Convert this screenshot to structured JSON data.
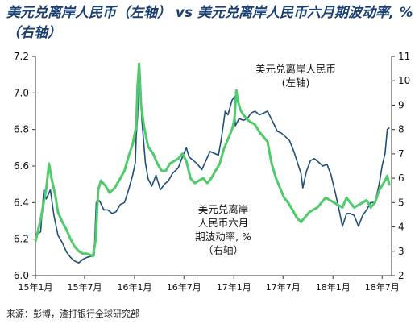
{
  "title": "美元兑离岸人民币（左轴） vs 美元兑离岸人民币六月期波动率, %（右轴）",
  "source": "来源：彭博，渣打银行全球研究部",
  "chart_data": {
    "type": "line",
    "title": "美元兑离岸人民币（左轴） vs 美元兑离岸人民币六月期波动率, %（右轴）",
    "x_ticks": [
      "15年1月",
      "15年7月",
      "16年1月",
      "16年7月",
      "17年1月",
      "17年7月",
      "18年1月",
      "18年7月"
    ],
    "y_left_ticks": [
      "6.0",
      "6.2",
      "6.4",
      "6.6",
      "6.8",
      "7.0",
      "7.2"
    ],
    "y_right_ticks": [
      "2",
      "3",
      "4",
      "5",
      "6",
      "7",
      "8",
      "9",
      "10",
      "11"
    ],
    "ylim_left": [
      6.0,
      7.2
    ],
    "ylim_right": [
      2,
      11
    ],
    "grid": false,
    "series": [
      {
        "name": "美元兑离岸人民币（左轴）",
        "axis": "left",
        "color": "#1f4e79",
        "annotation": [
          "美元兑离岸人民币",
          "(左轴)"
        ],
        "points": [
          [
            "2015-01-01",
            6.22
          ],
          [
            "2015-01-20",
            6.24
          ],
          [
            "2015-02-01",
            6.47
          ],
          [
            "2015-02-10",
            6.42
          ],
          [
            "2015-02-25",
            6.47
          ],
          [
            "2015-03-10",
            6.33
          ],
          [
            "2015-03-25",
            6.22
          ],
          [
            "2015-04-10",
            6.18
          ],
          [
            "2015-04-25",
            6.13
          ],
          [
            "2015-05-10",
            6.1
          ],
          [
            "2015-05-25",
            6.08
          ],
          [
            "2015-06-10",
            6.07
          ],
          [
            "2015-06-25",
            6.09
          ],
          [
            "2015-07-10",
            6.1
          ],
          [
            "2015-08-05",
            6.11
          ],
          [
            "2015-08-13",
            6.4
          ],
          [
            "2015-08-25",
            6.41
          ],
          [
            "2015-09-10",
            6.36
          ],
          [
            "2015-09-25",
            6.36
          ],
          [
            "2015-10-10",
            6.34
          ],
          [
            "2015-10-25",
            6.35
          ],
          [
            "2015-11-10",
            6.39
          ],
          [
            "2015-11-25",
            6.4
          ],
          [
            "2015-12-10",
            6.47
          ],
          [
            "2015-12-25",
            6.55
          ],
          [
            "2016-01-04",
            6.62
          ],
          [
            "2016-01-07",
            6.76
          ],
          [
            "2016-01-12",
            6.87
          ],
          [
            "2016-01-20",
            7.13
          ],
          [
            "2016-01-28",
            6.85
          ],
          [
            "2016-02-10",
            6.62
          ],
          [
            "2016-02-20",
            6.53
          ],
          [
            "2016-03-05",
            6.49
          ],
          [
            "2016-03-20",
            6.55
          ],
          [
            "2016-04-05",
            6.47
          ],
          [
            "2016-04-20",
            6.5
          ],
          [
            "2016-05-05",
            6.52
          ],
          [
            "2016-05-20",
            6.56
          ],
          [
            "2016-06-10",
            6.59
          ],
          [
            "2016-06-28",
            6.66
          ],
          [
            "2016-07-10",
            6.7
          ],
          [
            "2016-07-20",
            6.65
          ],
          [
            "2016-08-05",
            6.63
          ],
          [
            "2016-08-20",
            6.61
          ],
          [
            "2016-09-05",
            6.58
          ],
          [
            "2016-09-20",
            6.63
          ],
          [
            "2016-10-05",
            6.68
          ],
          [
            "2016-10-20",
            6.67
          ],
          [
            "2016-11-05",
            6.66
          ],
          [
            "2016-11-15",
            6.74
          ],
          [
            "2016-11-30",
            6.9
          ],
          [
            "2016-12-10",
            6.88
          ],
          [
            "2016-12-25",
            6.96
          ],
          [
            "2017-01-03",
            6.98
          ],
          [
            "2017-01-06",
            6.82
          ],
          [
            "2017-01-20",
            6.86
          ],
          [
            "2017-02-05",
            6.85
          ],
          [
            "2017-02-20",
            6.86
          ],
          [
            "2017-03-05",
            6.89
          ],
          [
            "2017-03-20",
            6.9
          ],
          [
            "2017-04-05",
            6.88
          ],
          [
            "2017-04-20",
            6.89
          ],
          [
            "2017-05-05",
            6.9
          ],
          [
            "2017-05-25",
            6.84
          ],
          [
            "2017-06-10",
            6.79
          ],
          [
            "2017-06-25",
            6.78
          ],
          [
            "2017-07-10",
            6.76
          ],
          [
            "2017-07-25",
            6.74
          ],
          [
            "2017-08-10",
            6.68
          ],
          [
            "2017-08-25",
            6.61
          ],
          [
            "2017-09-05",
            6.56
          ],
          [
            "2017-09-12",
            6.48
          ],
          [
            "2017-09-25",
            6.57
          ],
          [
            "2017-10-10",
            6.63
          ],
          [
            "2017-10-25",
            6.64
          ],
          [
            "2017-11-10",
            6.62
          ],
          [
            "2017-11-25",
            6.6
          ],
          [
            "2017-12-10",
            6.61
          ],
          [
            "2017-12-25",
            6.55
          ],
          [
            "2018-01-10",
            6.45
          ],
          [
            "2018-01-25",
            6.35
          ],
          [
            "2018-02-05",
            6.27
          ],
          [
            "2018-02-20",
            6.34
          ],
          [
            "2018-03-05",
            6.34
          ],
          [
            "2018-03-20",
            6.33
          ],
          [
            "2018-04-05",
            6.27
          ],
          [
            "2018-04-20",
            6.33
          ],
          [
            "2018-05-05",
            6.36
          ],
          [
            "2018-05-20",
            6.4
          ],
          [
            "2018-06-05",
            6.4
          ],
          [
            "2018-06-20",
            6.5
          ],
          [
            "2018-07-01",
            6.6
          ],
          [
            "2018-07-12",
            6.67
          ],
          [
            "2018-07-20",
            6.8
          ],
          [
            "2018-07-28",
            6.81
          ]
        ]
      },
      {
        "name": "美元兑离岸人民币六月期波动率, %（右轴）",
        "axis": "right",
        "color": "#4ecb6a",
        "annotation": [
          "美元兑离岸",
          "人民币六月",
          "期波动率, %",
          "（右轴）"
        ],
        "points": [
          [
            "2015-01-01",
            3.4
          ],
          [
            "2015-01-20",
            4.3
          ],
          [
            "2015-02-10",
            5.6
          ],
          [
            "2015-02-20",
            6.6
          ],
          [
            "2015-03-01",
            6.0
          ],
          [
            "2015-03-15",
            5.3
          ],
          [
            "2015-03-25",
            4.6
          ],
          [
            "2015-04-10",
            4.2
          ],
          [
            "2015-04-25",
            3.9
          ],
          [
            "2015-05-10",
            3.5
          ],
          [
            "2015-05-25",
            3.2
          ],
          [
            "2015-06-10",
            3.0
          ],
          [
            "2015-06-25",
            2.9
          ],
          [
            "2015-07-10",
            2.9
          ],
          [
            "2015-08-01",
            2.8
          ],
          [
            "2015-08-11",
            3.5
          ],
          [
            "2015-08-20",
            5.5
          ],
          [
            "2015-08-30",
            5.9
          ],
          [
            "2015-09-15",
            5.7
          ],
          [
            "2015-10-01",
            5.4
          ],
          [
            "2015-10-20",
            5.6
          ],
          [
            "2015-11-10",
            6.0
          ],
          [
            "2015-11-25",
            6.3
          ],
          [
            "2015-12-10",
            6.9
          ],
          [
            "2015-12-25",
            7.4
          ],
          [
            "2016-01-07",
            8.1
          ],
          [
            "2016-01-12",
            9.8
          ],
          [
            "2016-01-18",
            10.7
          ],
          [
            "2016-01-25",
            9.0
          ],
          [
            "2016-02-05",
            8.1
          ],
          [
            "2016-02-20",
            7.3
          ],
          [
            "2016-03-10",
            7.0
          ],
          [
            "2016-03-25",
            6.6
          ],
          [
            "2016-04-10",
            6.3
          ],
          [
            "2016-04-25",
            6.3
          ],
          [
            "2016-05-10",
            6.6
          ],
          [
            "2016-05-25",
            6.7
          ],
          [
            "2016-06-10",
            6.8
          ],
          [
            "2016-06-25",
            7.0
          ],
          [
            "2016-07-10",
            6.7
          ],
          [
            "2016-07-25",
            6.0
          ],
          [
            "2016-08-10",
            5.8
          ],
          [
            "2016-08-25",
            5.9
          ],
          [
            "2016-09-10",
            6.0
          ],
          [
            "2016-09-25",
            5.8
          ],
          [
            "2016-10-10",
            6.0
          ],
          [
            "2016-10-25",
            6.3
          ],
          [
            "2016-11-10",
            6.6
          ],
          [
            "2016-11-25",
            7.2
          ],
          [
            "2016-12-10",
            7.6
          ],
          [
            "2016-12-25",
            8.0
          ],
          [
            "2017-01-03",
            8.4
          ],
          [
            "2017-01-10",
            9.6
          ],
          [
            "2017-01-15",
            9.2
          ],
          [
            "2017-01-25",
            8.8
          ],
          [
            "2017-02-05",
            8.6
          ],
          [
            "2017-02-20",
            8.4
          ],
          [
            "2017-03-05",
            8.3
          ],
          [
            "2017-03-20",
            8.2
          ],
          [
            "2017-04-05",
            7.9
          ],
          [
            "2017-04-20",
            7.7
          ],
          [
            "2017-05-05",
            7.5
          ],
          [
            "2017-05-20",
            6.6
          ],
          [
            "2017-06-05",
            6.0
          ],
          [
            "2017-06-20",
            5.6
          ],
          [
            "2017-07-05",
            5.2
          ],
          [
            "2017-07-20",
            5.0
          ],
          [
            "2017-08-05",
            4.7
          ],
          [
            "2017-08-20",
            4.4
          ],
          [
            "2017-09-05",
            4.2
          ],
          [
            "2017-09-20",
            4.4
          ],
          [
            "2017-10-05",
            4.6
          ],
          [
            "2017-10-20",
            4.7
          ],
          [
            "2017-11-05",
            4.8
          ],
          [
            "2017-11-20",
            5.0
          ],
          [
            "2017-12-05",
            5.2
          ],
          [
            "2017-12-20",
            5.1
          ],
          [
            "2018-01-05",
            5.0
          ],
          [
            "2018-01-20",
            4.9
          ],
          [
            "2018-02-05",
            4.8
          ],
          [
            "2018-02-20",
            5.2
          ],
          [
            "2018-03-05",
            5.0
          ],
          [
            "2018-03-20",
            4.8
          ],
          [
            "2018-04-05",
            4.9
          ],
          [
            "2018-04-20",
            5.0
          ],
          [
            "2018-05-05",
            5.1
          ],
          [
            "2018-05-20",
            4.8
          ],
          [
            "2018-06-05",
            5.0
          ],
          [
            "2018-06-20",
            5.5
          ],
          [
            "2018-07-01",
            5.7
          ],
          [
            "2018-07-12",
            5.9
          ],
          [
            "2018-07-20",
            6.1
          ],
          [
            "2018-07-28",
            5.7
          ]
        ]
      }
    ]
  }
}
